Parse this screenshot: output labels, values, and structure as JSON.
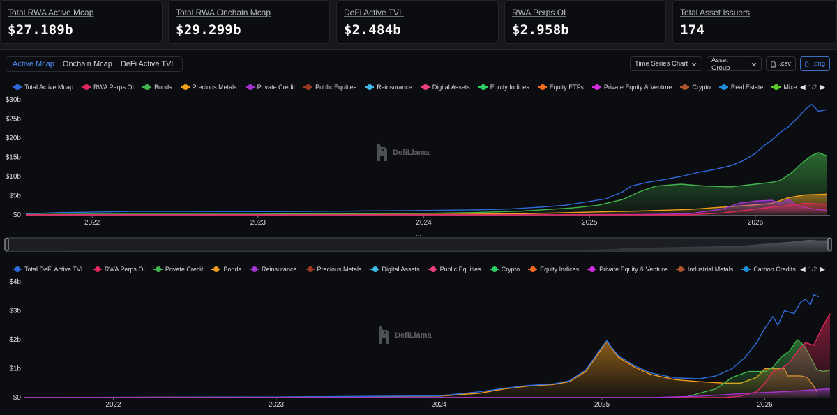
{
  "stats": [
    {
      "label": "Total RWA Active Mcap",
      "value": "$27.189b"
    },
    {
      "label": "Total RWA Onchain Mcap",
      "value": "$29.299b"
    },
    {
      "label": "DeFi Active TVL",
      "value": "$2.484b"
    },
    {
      "label": "RWA Perps OI",
      "value": "$2.958b"
    },
    {
      "label": "Total Asset Issuers",
      "value": "174"
    }
  ],
  "tabs": [
    "Active Mcap",
    "Onchain Mcap",
    "DeFi Active TVL"
  ],
  "active_tab": "Active Mcap",
  "toolbar": {
    "chart_type": "Time Series Chart",
    "group": "Asset Group",
    "csv": ".csv",
    "png": ".png"
  },
  "watermark": "DefiLlama",
  "icons": {
    "dropdown": "chevron-down-icon",
    "file": "file-icon",
    "image": "image-icon",
    "pager_prev": "triangle-left-icon",
    "pager_next": "triangle-right-icon",
    "brush_handle": "drag-handle-icon"
  },
  "chart_data": [
    {
      "type": "area",
      "x_unit": "year",
      "xlim": [
        2021.6,
        2026.45
      ],
      "xticks": [
        "2022",
        "2023",
        "2024",
        "2025",
        "2026"
      ],
      "yticks": [
        "$0",
        "$5b",
        "$10b",
        "$15b",
        "$20b",
        "$25b",
        "$30b"
      ],
      "ylim": [
        0,
        30
      ],
      "y_unit": "$b",
      "grid": false,
      "legend_position": "top",
      "legend_page": "1/2",
      "legend": [
        {
          "name": "Total Active Mcap",
          "color": "#2e6bd9"
        },
        {
          "name": "RWA Perps OI",
          "color": "#e0285a"
        },
        {
          "name": "Bonds",
          "color": "#43b54d"
        },
        {
          "name": "Precious Metals",
          "color": "#f29d1f"
        },
        {
          "name": "Private Credit",
          "color": "#a235d0"
        },
        {
          "name": "Public Equities",
          "color": "#9b3b20"
        },
        {
          "name": "Reinsurance",
          "color": "#3fb8e8"
        },
        {
          "name": "Digital Assets",
          "color": "#e83f82"
        },
        {
          "name": "Equity Indices",
          "color": "#2bcf66"
        },
        {
          "name": "Equity ETFs",
          "color": "#f26a22"
        },
        {
          "name": "Private Equity & Venture",
          "color": "#d12ce2"
        },
        {
          "name": "Crypto",
          "color": "#b0552c"
        },
        {
          "name": "Real Estate",
          "color": "#1f8ed9"
        },
        {
          "name": "Mixed Pu",
          "color": "#5acb28"
        }
      ],
      "series": [
        {
          "name": "Total Active Mcap",
          "color": "#2e6bd9",
          "fill": false,
          "points": [
            [
              2021.6,
              0.3
            ],
            [
              2021.8,
              0.6
            ],
            [
              2022.0,
              0.7
            ],
            [
              2022.25,
              0.9
            ],
            [
              2022.5,
              0.9
            ],
            [
              2022.8,
              0.85
            ],
            [
              2023.0,
              0.85
            ],
            [
              2023.3,
              0.9
            ],
            [
              2023.6,
              1.0
            ],
            [
              2023.9,
              1.1
            ],
            [
              2024.1,
              1.2
            ],
            [
              2024.3,
              1.3
            ],
            [
              2024.5,
              1.5
            ],
            [
              2024.7,
              2.0
            ],
            [
              2024.85,
              2.5
            ],
            [
              2025.0,
              3.5
            ],
            [
              2025.1,
              4.2
            ],
            [
              2025.2,
              6.0
            ],
            [
              2025.25,
              7.5
            ],
            [
              2025.35,
              8.5
            ],
            [
              2025.45,
              9.2
            ],
            [
              2025.55,
              10.0
            ],
            [
              2025.65,
              11.0
            ],
            [
              2025.75,
              11.8
            ],
            [
              2025.85,
              12.8
            ],
            [
              2025.92,
              14.0
            ],
            [
              2026.0,
              16.0
            ],
            [
              2026.05,
              18.0
            ],
            [
              2026.1,
              19.5
            ],
            [
              2026.15,
              21.5
            ],
            [
              2026.2,
              23.0
            ],
            [
              2026.26,
              25.5
            ],
            [
              2026.3,
              27.5
            ],
            [
              2026.34,
              28.8
            ],
            [
              2026.38,
              27.0
            ],
            [
              2026.43,
              27.4
            ]
          ]
        },
        {
          "name": "Bonds",
          "color": "#43b54d",
          "fill": true,
          "points": [
            [
              2021.6,
              0.1
            ],
            [
              2022.0,
              0.2
            ],
            [
              2023.0,
              0.2
            ],
            [
              2024.0,
              0.4
            ],
            [
              2024.3,
              0.6
            ],
            [
              2024.6,
              1.0
            ],
            [
              2024.9,
              1.8
            ],
            [
              2025.05,
              2.5
            ],
            [
              2025.2,
              4.0
            ],
            [
              2025.3,
              6.0
            ],
            [
              2025.4,
              7.5
            ],
            [
              2025.55,
              8.0
            ],
            [
              2025.7,
              7.5
            ],
            [
              2025.85,
              7.3
            ],
            [
              2026.0,
              8.0
            ],
            [
              2026.1,
              8.5
            ],
            [
              2026.15,
              9.0
            ],
            [
              2026.22,
              11.0
            ],
            [
              2026.28,
              13.5
            ],
            [
              2026.34,
              15.5
            ],
            [
              2026.38,
              16.2
            ],
            [
              2026.43,
              15.4
            ]
          ]
        },
        {
          "name": "Precious Metals",
          "color": "#f29d1f",
          "fill": true,
          "points": [
            [
              2021.6,
              0.0
            ],
            [
              2023.0,
              0.05
            ],
            [
              2024.0,
              0.1
            ],
            [
              2024.6,
              0.3
            ],
            [
              2025.0,
              0.7
            ],
            [
              2025.3,
              1.0
            ],
            [
              2025.6,
              1.4
            ],
            [
              2025.8,
              2.0
            ],
            [
              2026.0,
              2.6
            ],
            [
              2026.1,
              3.0
            ],
            [
              2026.2,
              4.5
            ],
            [
              2026.3,
              5.2
            ],
            [
              2026.43,
              5.4
            ]
          ]
        },
        {
          "name": "Private Credit",
          "color": "#a235d0",
          "fill": true,
          "points": [
            [
              2021.6,
              0.0
            ],
            [
              2024.5,
              0.0
            ],
            [
              2025.3,
              0.1
            ],
            [
              2025.6,
              0.3
            ],
            [
              2025.8,
              1.5
            ],
            [
              2025.9,
              3.0
            ],
            [
              2026.0,
              3.6
            ],
            [
              2026.1,
              3.8
            ],
            [
              2026.15,
              3.0
            ],
            [
              2026.2,
              4.0
            ],
            [
              2026.25,
              2.5
            ],
            [
              2026.35,
              1.5
            ],
            [
              2026.43,
              1.2
            ]
          ]
        },
        {
          "name": "RWA Perps OI",
          "color": "#e0285a",
          "fill": true,
          "points": [
            [
              2021.6,
              0.0
            ],
            [
              2025.6,
              0.0
            ],
            [
              2025.8,
              0.5
            ],
            [
              2025.9,
              1.0
            ],
            [
              2026.0,
              1.5
            ],
            [
              2026.1,
              2.0
            ],
            [
              2026.2,
              2.5
            ],
            [
              2026.3,
              3.0
            ],
            [
              2026.43,
              2.8
            ]
          ]
        }
      ]
    },
    {
      "type": "area",
      "x_unit": "year",
      "xlim": [
        2021.45,
        2026.4
      ],
      "xticks": [
        "2022",
        "2023",
        "2024",
        "2025",
        "2026"
      ],
      "yticks": [
        "$0",
        "$1b",
        "$2b",
        "$3b",
        "$4b"
      ],
      "ylim": [
        0,
        4
      ],
      "y_unit": "$b",
      "grid": false,
      "legend_position": "top",
      "legend_page": "1/2",
      "legend": [
        {
          "name": "Total DeFi Active TVL",
          "color": "#2e6bd9"
        },
        {
          "name": "RWA Perps OI",
          "color": "#e0285a"
        },
        {
          "name": "Private Credit",
          "color": "#43b54d"
        },
        {
          "name": "Bonds",
          "color": "#f29d1f"
        },
        {
          "name": "Reinsurance",
          "color": "#a235d0"
        },
        {
          "name": "Precious Metals",
          "color": "#9b3b20"
        },
        {
          "name": "Digital Assets",
          "color": "#3fb8e8"
        },
        {
          "name": "Public Equities",
          "color": "#e83f82"
        },
        {
          "name": "Crypto",
          "color": "#2bcf66"
        },
        {
          "name": "Equity Indices",
          "color": "#f26a22"
        },
        {
          "name": "Private Equity & Venture",
          "color": "#d12ce2"
        },
        {
          "name": "Industrial Metals",
          "color": "#b0552c"
        },
        {
          "name": "Carbon Credits",
          "color": "#1f8ed9"
        }
      ],
      "series": [
        {
          "name": "Bonds",
          "color": "#f29d1f",
          "fill": true,
          "points": [
            [
              2021.45,
              0.0
            ],
            [
              2023.0,
              0.02
            ],
            [
              2024.0,
              0.05
            ],
            [
              2024.25,
              0.15
            ],
            [
              2024.4,
              0.3
            ],
            [
              2024.55,
              0.4
            ],
            [
              2024.7,
              0.45
            ],
            [
              2024.8,
              0.55
            ],
            [
              2024.9,
              0.9
            ],
            [
              2024.95,
              1.3
            ],
            [
              2025.0,
              1.7
            ],
            [
              2025.03,
              1.95
            ],
            [
              2025.06,
              1.7
            ],
            [
              2025.1,
              1.4
            ],
            [
              2025.2,
              1.05
            ],
            [
              2025.3,
              0.8
            ],
            [
              2025.45,
              0.62
            ],
            [
              2025.6,
              0.55
            ],
            [
              2025.75,
              0.5
            ],
            [
              2025.85,
              0.5
            ],
            [
              2025.95,
              0.7
            ],
            [
              2026.0,
              1.0
            ],
            [
              2026.12,
              1.0
            ],
            [
              2026.14,
              0.75
            ],
            [
              2026.22,
              0.75
            ],
            [
              2026.26,
              0.7
            ],
            [
              2026.3,
              0.4
            ],
            [
              2026.32,
              0.2
            ]
          ]
        },
        {
          "name": "Total DeFi Active TVL",
          "color": "#2e6bd9",
          "fill": false,
          "points": [
            [
              2021.45,
              0.0
            ],
            [
              2022.0,
              0.01
            ],
            [
              2023.0,
              0.02
            ],
            [
              2024.0,
              0.06
            ],
            [
              2024.25,
              0.2
            ],
            [
              2024.4,
              0.32
            ],
            [
              2024.55,
              0.42
            ],
            [
              2024.7,
              0.47
            ],
            [
              2024.8,
              0.58
            ],
            [
              2024.9,
              0.95
            ],
            [
              2024.95,
              1.35
            ],
            [
              2025.0,
              1.75
            ],
            [
              2025.03,
              1.97
            ],
            [
              2025.06,
              1.72
            ],
            [
              2025.1,
              1.45
            ],
            [
              2025.2,
              1.1
            ],
            [
              2025.3,
              0.85
            ],
            [
              2025.45,
              0.68
            ],
            [
              2025.6,
              0.65
            ],
            [
              2025.7,
              0.75
            ],
            [
              2025.8,
              1.0
            ],
            [
              2025.88,
              1.4
            ],
            [
              2025.95,
              1.9
            ],
            [
              2026.0,
              2.4
            ],
            [
              2026.05,
              2.8
            ],
            [
              2026.08,
              2.5
            ],
            [
              2026.12,
              3.0
            ],
            [
              2026.18,
              2.9
            ],
            [
              2026.22,
              3.3
            ],
            [
              2026.25,
              3.4
            ],
            [
              2026.28,
              3.2
            ],
            [
              2026.3,
              3.55
            ],
            [
              2026.33,
              3.48
            ]
          ]
        },
        {
          "name": "Private Credit",
          "color": "#43b54d",
          "fill": true,
          "points": [
            [
              2021.45,
              0.0
            ],
            [
              2025.5,
              0.0
            ],
            [
              2025.7,
              0.3
            ],
            [
              2025.8,
              0.7
            ],
            [
              2025.9,
              0.9
            ],
            [
              2026.0,
              0.9
            ],
            [
              2026.05,
              1.05
            ],
            [
              2026.1,
              1.4
            ],
            [
              2026.15,
              1.6
            ],
            [
              2026.2,
              2.0
            ],
            [
              2026.24,
              1.8
            ],
            [
              2026.28,
              1.4
            ],
            [
              2026.32,
              0.95
            ],
            [
              2026.36,
              0.9
            ],
            [
              2026.4,
              0.95
            ]
          ]
        },
        {
          "name": "RWA Perps OI",
          "color": "#e0285a",
          "fill": true,
          "points": [
            [
              2021.45,
              0.0
            ],
            [
              2025.75,
              0.0
            ],
            [
              2025.85,
              0.05
            ],
            [
              2025.95,
              0.2
            ],
            [
              2026.0,
              0.5
            ],
            [
              2026.05,
              0.9
            ],
            [
              2026.1,
              1.0
            ],
            [
              2026.15,
              1.2
            ],
            [
              2026.2,
              1.6
            ],
            [
              2026.25,
              1.9
            ],
            [
              2026.3,
              1.8
            ],
            [
              2026.35,
              2.4
            ],
            [
              2026.4,
              2.9
            ]
          ]
        },
        {
          "name": "Reinsurance",
          "color": "#a235d0",
          "fill": true,
          "points": [
            [
              2021.45,
              0.0
            ],
            [
              2025.3,
              0.0
            ],
            [
              2025.6,
              0.05
            ],
            [
              2025.9,
              0.15
            ],
            [
              2026.1,
              0.2
            ],
            [
              2026.25,
              0.25
            ],
            [
              2026.4,
              0.3
            ]
          ]
        }
      ]
    }
  ]
}
